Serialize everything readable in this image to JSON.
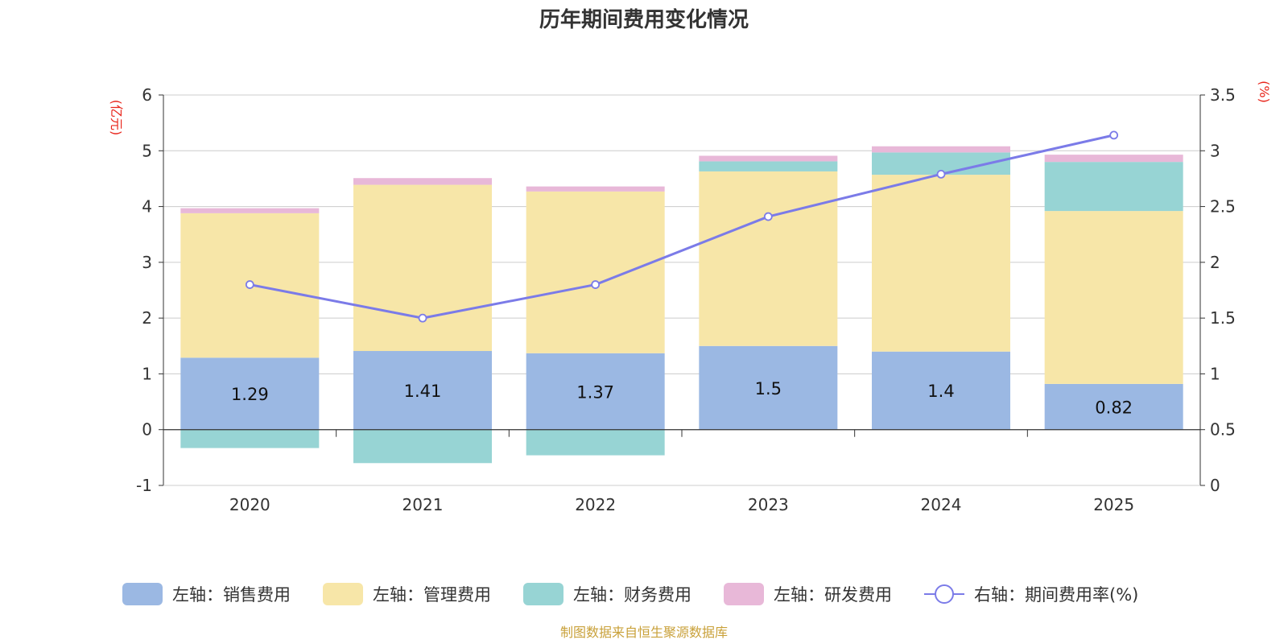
{
  "chart_data": {
    "type": "bar",
    "title": "历年期间费用变化情况",
    "categories": [
      "2020",
      "2021",
      "2022",
      "2023",
      "2024",
      "2025"
    ],
    "left_axis": {
      "unit": "(亿元)",
      "ylim": [
        -1,
        6
      ],
      "ticks": [
        "-1",
        "0",
        "1",
        "2",
        "3",
        "4",
        "5",
        "6"
      ]
    },
    "right_axis": {
      "unit": "(%)",
      "ylim": [
        0,
        3.5
      ],
      "ticks": [
        "0",
        "0.5",
        "1",
        "1.5",
        "2",
        "2.5",
        "3",
        "3.5"
      ]
    },
    "series": [
      {
        "name": "左轴：销售费用",
        "axis": "left",
        "kind": "bar",
        "color": "#9bb8e3",
        "values": [
          1.29,
          1.41,
          1.37,
          1.5,
          1.4,
          0.82
        ],
        "labels": [
          "1.29",
          "1.41",
          "1.37",
          "1.5",
          "1.4",
          "0.82"
        ]
      },
      {
        "name": "左轴：管理费用",
        "axis": "left",
        "kind": "bar",
        "color": "#f7e6a8",
        "values": [
          2.59,
          2.98,
          2.9,
          3.13,
          3.17,
          3.1
        ]
      },
      {
        "name": "左轴：财务费用",
        "axis": "left",
        "kind": "bar",
        "color": "#97d4d4",
        "values": [
          -0.33,
          -0.6,
          -0.46,
          0.18,
          0.4,
          0.88
        ]
      },
      {
        "name": "左轴：研发费用",
        "axis": "left",
        "kind": "bar",
        "color": "#e8b8d8",
        "values": [
          0.09,
          0.12,
          0.09,
          0.1,
          0.11,
          0.13
        ]
      },
      {
        "name": "右轴：期间费用率(%)",
        "axis": "right",
        "kind": "line",
        "color": "#7b7be8",
        "values": [
          1.8,
          1.5,
          1.8,
          2.41,
          2.79,
          3.14
        ]
      }
    ],
    "grid": true,
    "legend": "bottom"
  },
  "source_note": "制图数据来自恒生聚源数据库"
}
